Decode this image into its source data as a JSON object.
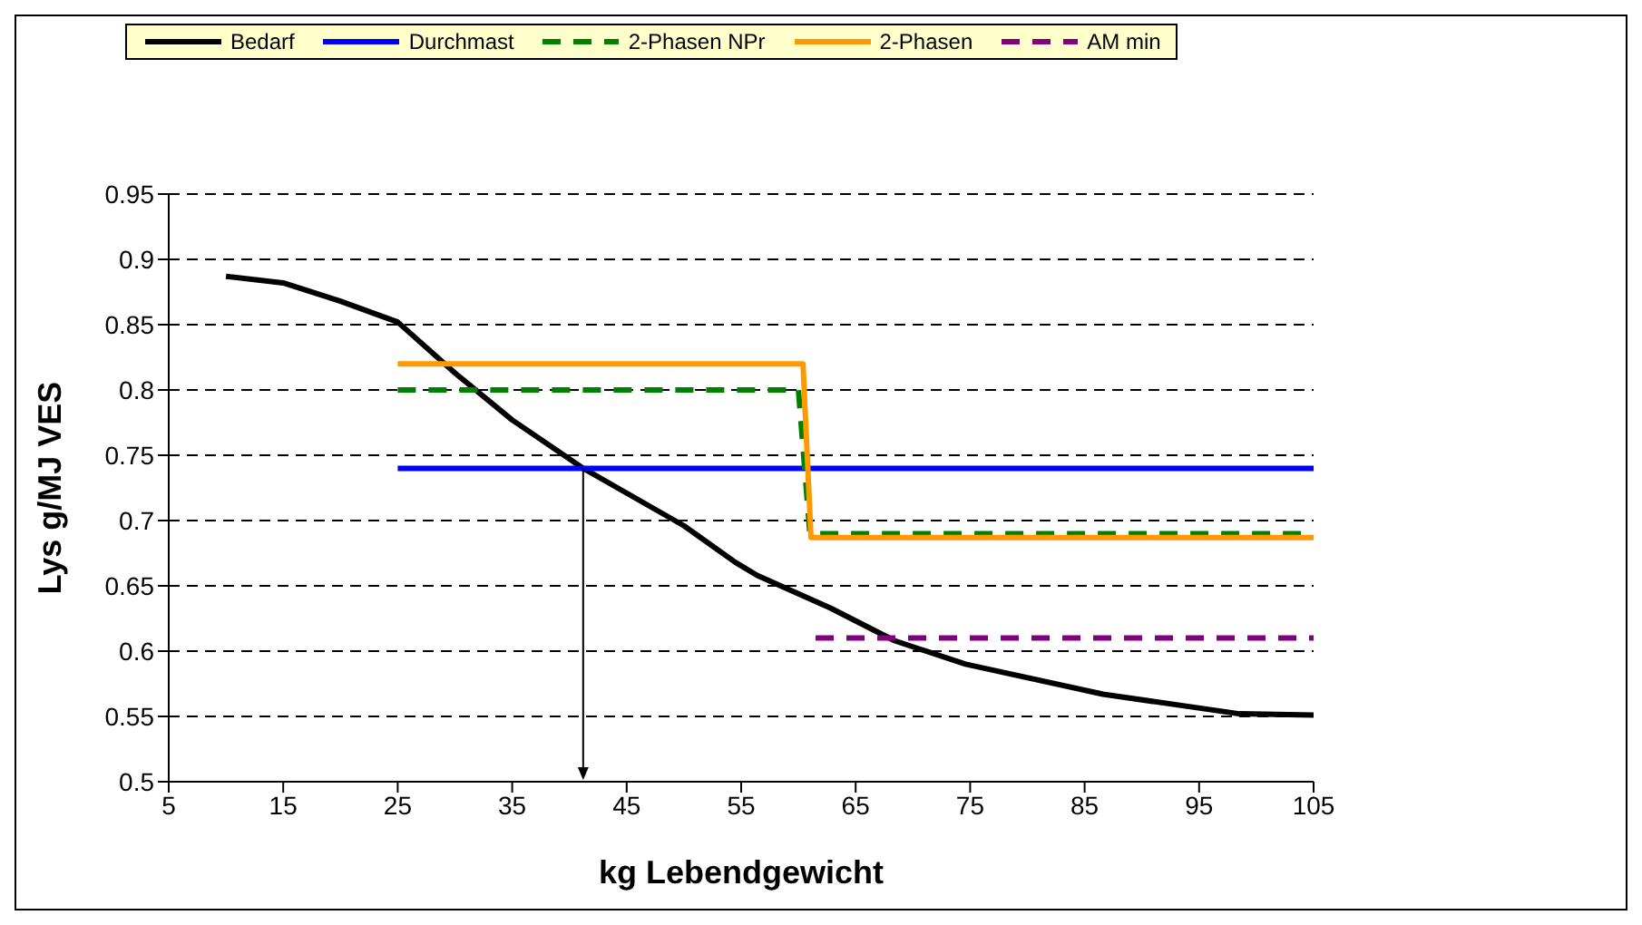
{
  "chart_data": {
    "type": "line",
    "xlabel": "kg Lebendgewicht",
    "ylabel": "Lys g/MJ VES",
    "xlim": [
      5,
      105
    ],
    "xticks": [
      5,
      15,
      25,
      35,
      45,
      55,
      65,
      75,
      85,
      95,
      105
    ],
    "ylim": [
      0.5,
      0.95
    ],
    "yticks": [
      0.5,
      0.55,
      0.6,
      0.65,
      0.7,
      0.75,
      0.8,
      0.85,
      0.9,
      0.95
    ],
    "grid": "y",
    "legend": "top",
    "marker": "none",
    "series": [
      {
        "name": "Bedarf",
        "color": "#000000",
        "line_style": "solid",
        "x": [
          10,
          15,
          20,
          25,
          30,
          35,
          41.2,
          45,
          50,
          54.5,
          56.4,
          62.8,
          68.4,
          74.6,
          86.6,
          98.5,
          105
        ],
        "values": [
          0.887,
          0.882,
          0.868,
          0.852,
          0.813,
          0.777,
          0.74,
          0.721,
          0.696,
          0.668,
          0.658,
          0.633,
          0.608,
          0.59,
          0.567,
          0.552,
          0.551
        ]
      },
      {
        "name": "Durchmast",
        "color": "#0000ff",
        "line_style": "solid",
        "x": [
          25,
          105
        ],
        "values": [
          0.74,
          0.74
        ]
      },
      {
        "name": "2-Phasen NPr",
        "color": "#008000",
        "line_style": "dashed",
        "x": [
          25,
          60,
          61,
          105
        ],
        "values": [
          0.8,
          0.8,
          0.69,
          0.69
        ]
      },
      {
        "name": "2-Phasen",
        "color": "#ff9900",
        "line_style": "solid",
        "x": [
          25,
          60.4,
          61.1,
          105
        ],
        "values": [
          0.82,
          0.82,
          0.687,
          0.687
        ]
      },
      {
        "name": "AM min",
        "color": "#800080",
        "line_style": "dashed",
        "x": [
          61.5,
          105
        ],
        "values": [
          0.61,
          0.61
        ]
      }
    ]
  }
}
